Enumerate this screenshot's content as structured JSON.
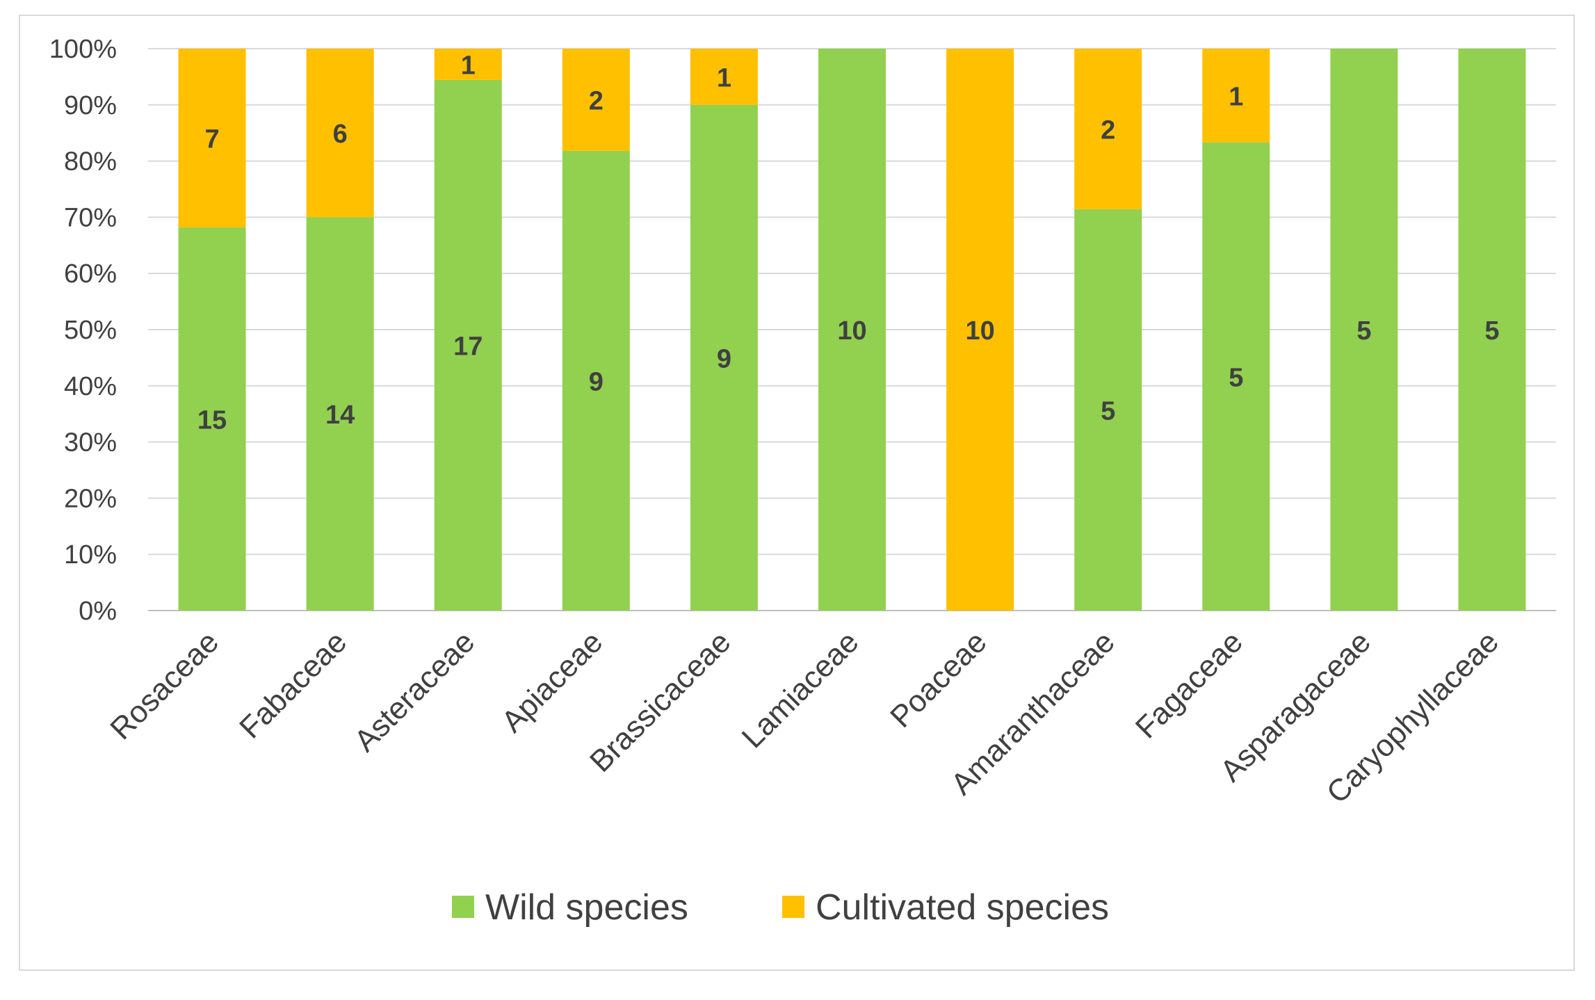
{
  "chart_data": {
    "type": "bar",
    "stacked": true,
    "normalized": true,
    "title": "",
    "xlabel": "",
    "ylabel": "",
    "ylim": [
      0,
      100
    ],
    "y_ticks": [
      "0%",
      "10%",
      "20%",
      "30%",
      "40%",
      "50%",
      "60%",
      "70%",
      "80%",
      "90%",
      "100%"
    ],
    "grid": "horizontal",
    "legend_position": "bottom",
    "categories": [
      "Rosaceae",
      "Fabaceae",
      "Asteraceae",
      "Apiaceae",
      "Brassicaceae",
      "Lamiaceae",
      "Poaceae",
      "Amaranthaceae",
      "Fagaceae",
      "Asparagaceae",
      "Caryophyllaceae"
    ],
    "series": [
      {
        "name": "Wild species",
        "color": "#92d050",
        "values": [
          15,
          14,
          17,
          9,
          9,
          10,
          0,
          5,
          5,
          5,
          5
        ]
      },
      {
        "name": "Cultivated species",
        "color": "#ffc000",
        "values": [
          7,
          6,
          1,
          2,
          1,
          0,
          10,
          2,
          1,
          0,
          0
        ]
      }
    ]
  }
}
